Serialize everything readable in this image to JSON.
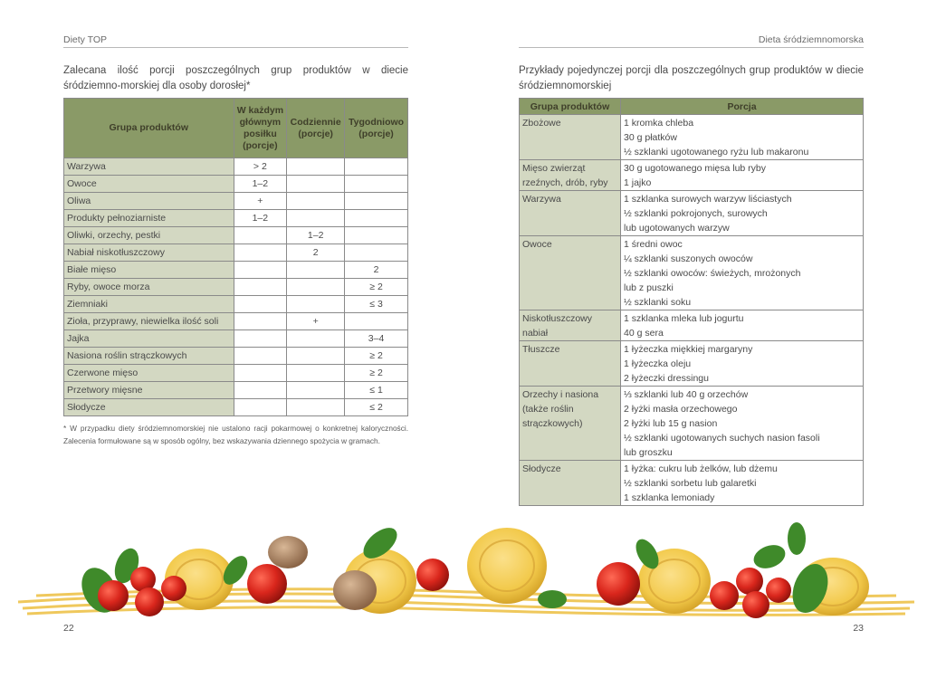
{
  "left_page": {
    "running_head": "Diety TOP",
    "intro": "Zalecana ilość porcji poszczególnych grup produktów w diecie śródziemno-morskiej dla osoby dorosłej*",
    "table": {
      "headers": [
        "Grupa produktów",
        "W każdym głównym posiłku (porcje)",
        "Codziennie (porcje)",
        "Tygodniowo (porcje)"
      ],
      "rows": [
        [
          "Warzywa",
          "> 2",
          "",
          ""
        ],
        [
          "Owoce",
          "1–2",
          "",
          ""
        ],
        [
          "Oliwa",
          "+",
          "",
          ""
        ],
        [
          "Produkty pełnoziarniste",
          "1–2",
          "",
          ""
        ],
        [
          "Oliwki, orzechy, pestki",
          "",
          "1–2",
          ""
        ],
        [
          "Nabiał niskotłuszczowy",
          "",
          "2",
          ""
        ],
        [
          "Białe mięso",
          "",
          "",
          "2"
        ],
        [
          "Ryby, owoce morza",
          "",
          "",
          "≥ 2"
        ],
        [
          "Ziemniaki",
          "",
          "",
          "≤ 3"
        ],
        [
          "Zioła, przyprawy, niewielka ilość soli",
          "",
          "+",
          ""
        ],
        [
          "Jajka",
          "",
          "",
          "3–4"
        ],
        [
          "Nasiona roślin strączkowych",
          "",
          "",
          "≥ 2"
        ],
        [
          "Czerwone mięso",
          "",
          "",
          "≥ 2"
        ],
        [
          "Przetwory mięsne",
          "",
          "",
          "≤ 1"
        ],
        [
          "Słodycze",
          "",
          "",
          "≤ 2"
        ]
      ]
    },
    "footnote": "* W przypadku diety śródziemnomorskiej nie ustalono racji pokarmowej o konkretnej kaloryczności. Zalecenia formułowane są w sposób ogólny, bez wskazywania dziennego spożycia w gramach.",
    "page_number": "22"
  },
  "right_page": {
    "running_head": "Dieta śródziemnomorska",
    "intro": "Przykłady pojedynczej porcji dla poszczególnych grup produktów w diecie śródziemnomorskiej",
    "table": {
      "headers": [
        "Grupa produktów",
        "Porcja"
      ],
      "rows": [
        {
          "group": [
            "Zbożowe"
          ],
          "portions": [
            "1 kromka chleba",
            "30 g płatków",
            "½ szklanki ugotowanego ryżu lub makaronu"
          ]
        },
        {
          "group": [
            "Mięso zwierząt",
            "rzeźnych, drób, ryby"
          ],
          "portions": [
            "30 g ugotowanego mięsa lub ryby",
            "1 jajko"
          ]
        },
        {
          "group": [
            "Warzywa"
          ],
          "portions": [
            "1 szklanka surowych warzyw liściastych",
            " ½ szklanki pokrojonych, surowych",
            "lub ugotowanych warzyw"
          ]
        },
        {
          "group": [
            "Owoce"
          ],
          "portions": [
            "1 średni owoc",
            "¼ szklanki suszonych owoców",
            "½ szklanki owoców: świeżych, mrożonych",
            "lub z puszki",
            "½ szklanki soku"
          ]
        },
        {
          "group": [
            "Niskotłuszczowy",
            "nabiał"
          ],
          "portions": [
            "1 szklanka mleka lub jogurtu",
            "40 g sera"
          ]
        },
        {
          "group": [
            "Tłuszcze"
          ],
          "portions": [
            "1 łyżeczka miękkiej margaryny",
            "1 łyżeczka oleju",
            "2 łyżeczki dressingu"
          ]
        },
        {
          "group": [
            "Orzechy i nasiona",
            "(także roślin",
            "strączkowych)"
          ],
          "portions": [
            "⅓ szklanki lub 40 g orzechów",
            "2 łyżki masła orzechowego",
            "2 łyżki lub 15 g nasion",
            "½ szklanki ugotowanych suchych nasion fasoli",
            "lub groszku"
          ]
        },
        {
          "group": [
            "Słodycze"
          ],
          "portions": [
            "1 łyżka: cukru lub żelków, lub dżemu",
            " ½ szklanki sorbetu lub galaretki",
            "1 szklanka lemoniady"
          ]
        }
      ]
    },
    "page_number": "23"
  },
  "decoration": {
    "image": "pasta-tomatoes-basil-mushrooms-photo",
    "colors": {
      "pasta": "#f2c94a",
      "tomato": "#d9261c",
      "basil": "#3f8a2a",
      "mushroom": "#a07b5c",
      "table_header": "#8a9a67",
      "table_label_cell": "#d3d8c2"
    }
  }
}
